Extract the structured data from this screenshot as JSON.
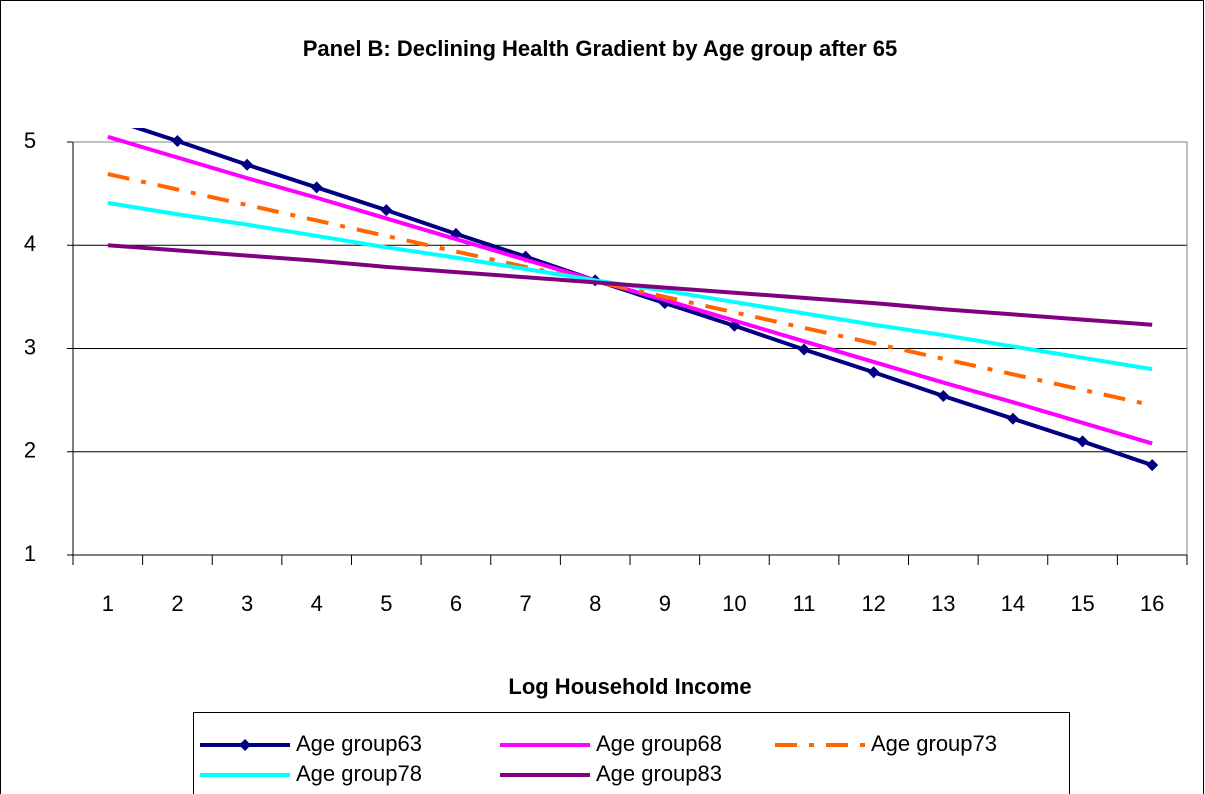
{
  "chart_data": {
    "type": "line",
    "title": "Panel B: Declining Health Gradient by Age group after 65",
    "x_label": "Log Household Income",
    "categories": [
      "1",
      "2",
      "3",
      "4",
      "5",
      "6",
      "7",
      "8",
      "9",
      "10",
      "11",
      "12",
      "13",
      "14",
      "15",
      "16"
    ],
    "ylim": [
      1,
      5
    ],
    "yticks": [
      1,
      2,
      3,
      4,
      5
    ],
    "grid": true,
    "legend": "bottom",
    "series": [
      {
        "name": "Age group63",
        "color": "#000080",
        "marker": "diamond",
        "values": [
          5.23,
          5.01,
          4.78,
          4.56,
          4.34,
          4.11,
          3.89,
          3.66,
          3.44,
          3.22,
          2.99,
          2.77,
          2.54,
          2.32,
          2.1,
          1.87
        ]
      },
      {
        "name": "Age group68",
        "color": "#ff00ff",
        "values": [
          5.05,
          4.85,
          4.65,
          4.46,
          4.26,
          4.06,
          3.86,
          3.66,
          3.47,
          3.27,
          3.07,
          2.87,
          2.67,
          2.48,
          2.28,
          2.08
        ]
      },
      {
        "name": "Age group73",
        "color": "#ff6600",
        "dash": "dash-dot",
        "values": [
          4.69,
          4.54,
          4.39,
          4.24,
          4.09,
          3.94,
          3.79,
          3.65,
          3.5,
          3.35,
          3.2,
          3.05,
          2.9,
          2.75,
          2.6,
          2.45
        ]
      },
      {
        "name": "Age group78",
        "color": "#00ffff",
        "values": [
          4.41,
          4.3,
          4.2,
          4.09,
          3.98,
          3.88,
          3.77,
          3.66,
          3.56,
          3.45,
          3.34,
          3.23,
          3.13,
          3.02,
          2.91,
          2.8
        ]
      },
      {
        "name": "Age group83",
        "color": "#800080",
        "values": [
          4.0,
          3.95,
          3.9,
          3.85,
          3.79,
          3.74,
          3.69,
          3.64,
          3.59,
          3.54,
          3.49,
          3.44,
          3.38,
          3.33,
          3.28,
          3.23
        ]
      }
    ]
  }
}
